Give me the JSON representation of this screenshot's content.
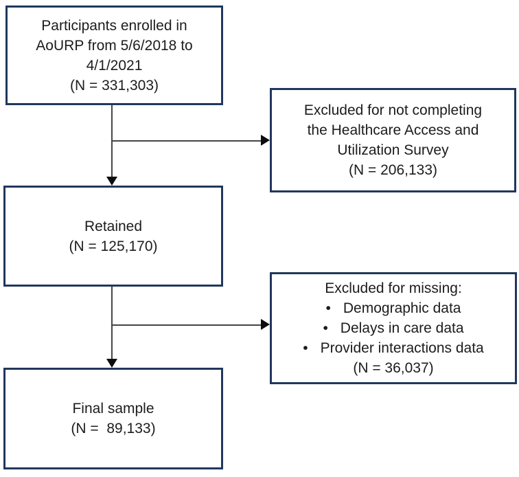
{
  "diagram": {
    "type": "flowchart",
    "description": "Participant enrollment and exclusion flow diagram",
    "colors": {
      "box_border": "#20375c",
      "box_background": "#ffffff",
      "text": "#1c1c1c",
      "connector_line": "#454545",
      "arrowhead": "#0d0d0d",
      "page_background": "#ffffff"
    },
    "boxes": {
      "enrolled": {
        "lines": [
          "Participants enrolled in",
          "AoURP from 5/6/2018 to",
          "4/1/2021",
          "(N = 331,303)"
        ]
      },
      "excluded_survey": {
        "lines": [
          "Excluded for not completing",
          "the Healthcare Access and",
          "Utilization Survey",
          "(N = 206,133)"
        ]
      },
      "retained": {
        "lines": [
          "Retained",
          "(N = 125,170)"
        ]
      },
      "excluded_missing": {
        "title": "Excluded for missing:",
        "bullet_char": "•",
        "bullets": [
          "Demographic data",
          "Delays in care data",
          "Provider interactions data"
        ],
        "footer": "(N = 36,037)"
      },
      "final_sample": {
        "lines": [
          "Final sample",
          "(N =  89,133)"
        ]
      }
    },
    "connections": [
      "enrolled -> retained (down arrow)",
      "enrolled/retained branch -> excluded_survey (right arrow)",
      "retained -> final_sample (down arrow)",
      "retained/final_sample branch -> excluded_missing (right arrow)"
    ]
  }
}
